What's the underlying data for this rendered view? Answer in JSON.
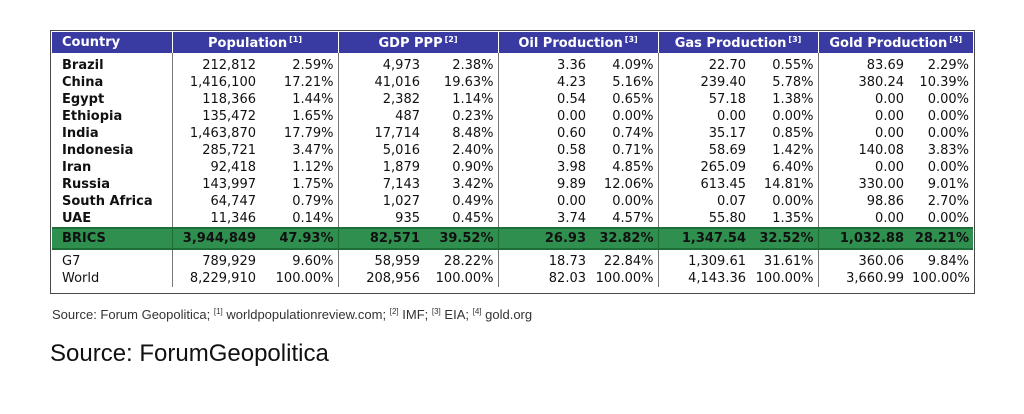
{
  "headers": {
    "country": "Country",
    "population": "Population",
    "population_ref": "[1]",
    "gdp": "GDP PPP",
    "gdp_ref": "[2]",
    "oil": "Oil Production",
    "oil_ref": "[3]",
    "gas": "Gas Production",
    "gas_ref": "[3]",
    "gold": "Gold Production",
    "gold_ref": "[4]"
  },
  "countries": [
    {
      "name": "Brazil",
      "pop": "212,812",
      "pop_pct": "2.59%",
      "gdp": "4,973",
      "gdp_pct": "2.38%",
      "oil": "3.36",
      "oil_pct": "4.09%",
      "gas": "22.70",
      "gas_pct": "0.55%",
      "gold": "83.69",
      "gold_pct": "2.29%"
    },
    {
      "name": "China",
      "pop": "1,416,100",
      "pop_pct": "17.21%",
      "gdp": "41,016",
      "gdp_pct": "19.63%",
      "oil": "4.23",
      "oil_pct": "5.16%",
      "gas": "239.40",
      "gas_pct": "5.78%",
      "gold": "380.24",
      "gold_pct": "10.39%"
    },
    {
      "name": "Egypt",
      "pop": "118,366",
      "pop_pct": "1.44%",
      "gdp": "2,382",
      "gdp_pct": "1.14%",
      "oil": "0.54",
      "oil_pct": "0.65%",
      "gas": "57.18",
      "gas_pct": "1.38%",
      "gold": "0.00",
      "gold_pct": "0.00%"
    },
    {
      "name": "Ethiopia",
      "pop": "135,472",
      "pop_pct": "1.65%",
      "gdp": "487",
      "gdp_pct": "0.23%",
      "oil": "0.00",
      "oil_pct": "0.00%",
      "gas": "0.00",
      "gas_pct": "0.00%",
      "gold": "0.00",
      "gold_pct": "0.00%"
    },
    {
      "name": "India",
      "pop": "1,463,870",
      "pop_pct": "17.79%",
      "gdp": "17,714",
      "gdp_pct": "8.48%",
      "oil": "0.60",
      "oil_pct": "0.74%",
      "gas": "35.17",
      "gas_pct": "0.85%",
      "gold": "0.00",
      "gold_pct": "0.00%"
    },
    {
      "name": "Indonesia",
      "pop": "285,721",
      "pop_pct": "3.47%",
      "gdp": "5,016",
      "gdp_pct": "2.40%",
      "oil": "0.58",
      "oil_pct": "0.71%",
      "gas": "58.69",
      "gas_pct": "1.42%",
      "gold": "140.08",
      "gold_pct": "3.83%"
    },
    {
      "name": "Iran",
      "pop": "92,418",
      "pop_pct": "1.12%",
      "gdp": "1,879",
      "gdp_pct": "0.90%",
      "oil": "3.98",
      "oil_pct": "4.85%",
      "gas": "265.09",
      "gas_pct": "6.40%",
      "gold": "0.00",
      "gold_pct": "0.00%"
    },
    {
      "name": "Russia",
      "pop": "143,997",
      "pop_pct": "1.75%",
      "gdp": "7,143",
      "gdp_pct": "3.42%",
      "oil": "9.89",
      "oil_pct": "12.06%",
      "gas": "613.45",
      "gas_pct": "14.81%",
      "gold": "330.00",
      "gold_pct": "9.01%"
    },
    {
      "name": "South Africa",
      "pop": "64,747",
      "pop_pct": "0.79%",
      "gdp": "1,027",
      "gdp_pct": "0.49%",
      "oil": "0.00",
      "oil_pct": "0.00%",
      "gas": "0.07",
      "gas_pct": "0.00%",
      "gold": "98.86",
      "gold_pct": "2.70%"
    },
    {
      "name": "UAE",
      "pop": "11,346",
      "pop_pct": "0.14%",
      "gdp": "935",
      "gdp_pct": "0.45%",
      "oil": "3.74",
      "oil_pct": "4.57%",
      "gas": "55.80",
      "gas_pct": "1.35%",
      "gold": "0.00",
      "gold_pct": "0.00%"
    }
  ],
  "brics": {
    "name": "BRICS",
    "pop": "3,944,849",
    "pop_pct": "47.93%",
    "gdp": "82,571",
    "gdp_pct": "39.52%",
    "oil": "26.93",
    "oil_pct": "32.82%",
    "gas": "1,347.54",
    "gas_pct": "32.52%",
    "gold": "1,032.88",
    "gold_pct": "28.21%"
  },
  "g7": {
    "name": "G7",
    "pop": "789,929",
    "pop_pct": "9.60%",
    "gdp": "58,959",
    "gdp_pct": "28.22%",
    "oil": "18.73",
    "oil_pct": "22.84%",
    "gas": "1,309.61",
    "gas_pct": "31.61%",
    "gold": "360.06",
    "gold_pct": "9.84%"
  },
  "world": {
    "name": "World",
    "pop": "8,229,910",
    "pop_pct": "100.00%",
    "gdp": "208,956",
    "gdp_pct": "100.00%",
    "oil": "82.03",
    "oil_pct": "100.00%",
    "gas": "4,143.36",
    "gas_pct": "100.00%",
    "gold": "3,660.99",
    "gold_pct": "100.00%"
  },
  "footnote": {
    "prefix": "Source: Forum Geopolitica;",
    "ref1": "[1]",
    "src1": "worldpopulationreview.com;",
    "ref2": "[2]",
    "src2": "IMF;",
    "ref3": "[3]",
    "src3": "EIA;",
    "ref4": "[4]",
    "src4": "gold.org"
  },
  "caption": "Source: ForumGeopolitica",
  "colors": {
    "header_bg": "#3a3aa3",
    "brics_bg": "#2f8f4e"
  }
}
